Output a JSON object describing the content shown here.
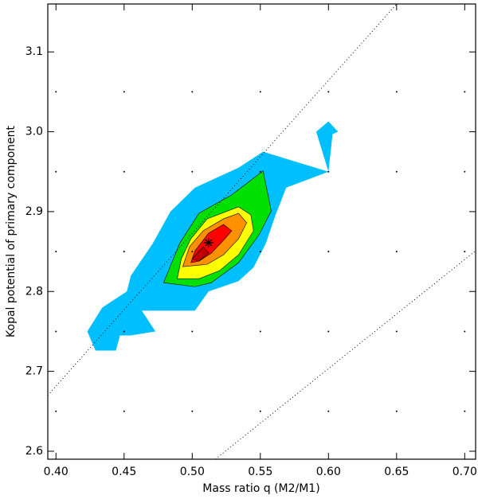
{
  "chart_data": {
    "type": "contour",
    "x_label": "Mass ratio q (M2/M1)",
    "y_label": "Kopal potential of primary component",
    "xlim": [
      0.394,
      0.708
    ],
    "ylim": [
      2.59,
      3.16
    ],
    "xticks": [
      {
        "value": 0.4,
        "label": "0.40"
      },
      {
        "value": 0.45,
        "label": "0.45"
      },
      {
        "value": 0.5,
        "label": "0.50"
      },
      {
        "value": 0.55,
        "label": "0.55"
      },
      {
        "value": 0.6,
        "label": "0.60"
      },
      {
        "value": 0.65,
        "label": "0.65"
      },
      {
        "value": 0.7,
        "label": "0.70"
      }
    ],
    "yticks": [
      2.6,
      2.7,
      2.8,
      2.9,
      {
        "value": 3,
        "label": "3.0"
      },
      3.1
    ],
    "grid_dots": true,
    "regions": [
      {
        "color": "#00bfff",
        "x": [
          0.423,
          0.434,
          0.452,
          0.455,
          0.471,
          0.484,
          0.502,
          0.534,
          0.552,
          0.6,
          0.591,
          0.6,
          0.607,
          0.603,
          0.6,
          0.569,
          0.561,
          0.554,
          0.545,
          0.534,
          0.512,
          0.502,
          0.463,
          0.473,
          0.455,
          0.447,
          0.444,
          0.429
        ],
        "y": [
          2.75,
          2.78,
          2.8,
          2.82,
          2.86,
          2.9,
          2.93,
          2.955,
          2.975,
          2.95,
          3.0,
          3.013,
          3.0,
          2.997,
          2.95,
          2.93,
          2.895,
          2.86,
          2.83,
          2.813,
          2.8,
          2.776,
          2.776,
          2.75,
          2.745,
          2.745,
          2.726,
          2.726
        ]
      },
      {
        "color": "#00e000",
        "x": [
          0.479,
          0.491,
          0.505,
          0.529,
          0.552,
          0.558,
          0.549,
          0.534,
          0.514,
          0.502
        ],
        "y": [
          2.811,
          2.861,
          2.898,
          2.921,
          2.951,
          2.901,
          2.871,
          2.836,
          2.811,
          2.806
        ]
      },
      {
        "color": "#ffff00",
        "x": [
          0.489,
          0.492,
          0.499,
          0.511,
          0.534,
          0.543,
          0.545,
          0.534,
          0.52,
          0.505
        ],
        "y": [
          2.816,
          2.841,
          2.866,
          2.891,
          2.906,
          2.896,
          2.876,
          2.846,
          2.826,
          2.816
        ]
      },
      {
        "color": "#ff9000",
        "x": [
          0.493,
          0.498,
          0.508,
          0.523,
          0.534,
          0.54,
          0.534,
          0.523,
          0.511
        ],
        "y": [
          2.831,
          2.856,
          2.876,
          2.891,
          2.898,
          2.886,
          2.866,
          2.846,
          2.834
        ]
      },
      {
        "color": "#ff0000",
        "x": [
          0.499,
          0.502,
          0.512,
          0.523,
          0.529,
          0.524,
          0.514,
          0.505
        ],
        "y": [
          2.836,
          2.851,
          2.873,
          2.884,
          2.876,
          2.866,
          2.848,
          2.838
        ]
      },
      {
        "color": "#c00000",
        "x": [
          0.5,
          0.508,
          0.512,
          0.505
        ],
        "y": [
          2.841,
          2.856,
          2.848,
          2.838
        ]
      }
    ],
    "reference_lines": [
      {
        "x": [
          0.394,
          0.65
        ],
        "y": [
          2.67,
          3.16
        ]
      },
      {
        "x": [
          0.517,
          0.708
        ],
        "y": [
          2.59,
          2.851
        ]
      }
    ],
    "best_fit": {
      "x": 0.512,
      "y": 2.861
    }
  }
}
